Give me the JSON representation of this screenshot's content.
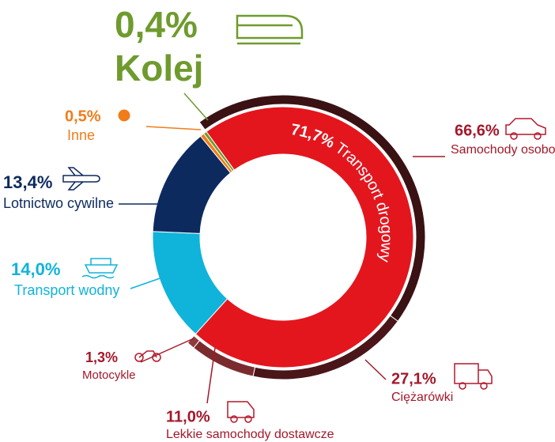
{
  "chart_data": [
    {
      "type": "donut",
      "categories": [
        "Transport drogowy",
        "Transport wodny",
        "Lotnictwo cywilne",
        "Inne",
        "Kolej"
      ],
      "values": [
        71.7,
        14.0,
        13.4,
        0.5,
        0.4
      ],
      "value_labels": [
        "71,7%",
        "14,0%",
        "13,4%",
        "0,5%",
        "0,4%"
      ],
      "colors": [
        "#e3161e",
        "#10b3da",
        "#0d2a5f",
        "#f07d1a",
        "#6f9b2e"
      ]
    },
    {
      "type": "donut-ring",
      "categories": [
        "Samochody osobowe",
        "Ciężarówki",
        "Lekkie samochody dostawcze",
        "Motocykle"
      ],
      "values": [
        66.6,
        27.1,
        11.0,
        1.3
      ],
      "value_labels": [
        "66,6%",
        "27,1%",
        "11,0%",
        "1,3%"
      ],
      "colors": [
        "#3a1214",
        "#4a1619",
        "#7b2b2e",
        "#8e3b3c"
      ]
    }
  ]
}
